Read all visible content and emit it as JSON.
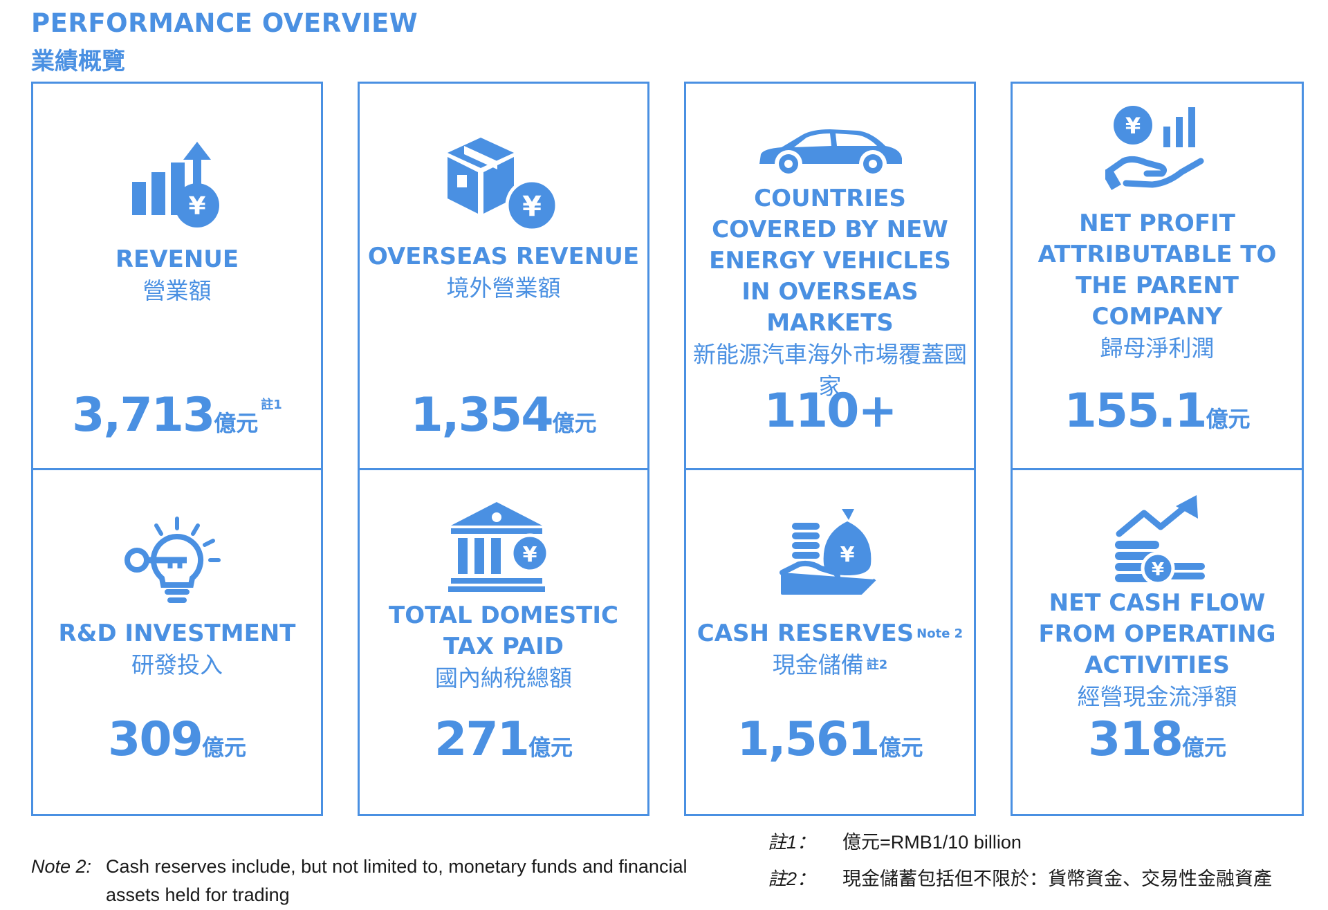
{
  "header": {
    "title_en": "PERFORMANCE OVERVIEW",
    "title_zh": "業績概覽"
  },
  "colors": {
    "accent": "#4a90e2",
    "text": "#1a1a1a"
  },
  "cards": [
    {
      "icon": "revenue-chart-yuan-icon",
      "title_en": "REVENUE",
      "title_zh": "營業額",
      "value": "3,713",
      "unit": "億元",
      "note": "註1"
    },
    {
      "icon": "box-yuan-icon",
      "title_en": "OVERSEAS REVENUE",
      "title_zh": "境外營業額",
      "value": "1,354",
      "unit": "億元"
    },
    {
      "icon": "car-icon",
      "title_en": "COUNTRIES COVERED BY NEW ENERGY VEHICLES IN OVERSEAS MARKETS",
      "title_zh": "新能源汽車海外市場覆蓋國家",
      "value": "110+"
    },
    {
      "icon": "hand-yuan-chart-icon",
      "title_en": "NET PROFIT ATTRIBUTABLE TO THE PARENT COMPANY",
      "title_zh": "歸母淨利潤",
      "value": "155.1",
      "unit": "億元"
    },
    {
      "icon": "lightbulb-key-icon",
      "title_en": "R&D INVESTMENT",
      "title_zh": "研發投入",
      "value": "309",
      "unit": "億元"
    },
    {
      "icon": "bank-yuan-icon",
      "title_en": "TOTAL DOMESTIC TAX PAID",
      "title_zh": "國內納稅總額",
      "value": "271",
      "unit": "億元"
    },
    {
      "icon": "money-bag-hand-icon",
      "title_en": "CASH RESERVES",
      "title_en_note": "Note 2",
      "title_zh": "現金儲備",
      "title_zh_note": "註2",
      "value": "1,561",
      "unit": "億元"
    },
    {
      "icon": "coins-arrow-up-icon",
      "title_en": "NET CASH FLOW FROM OPERATING ACTIVITIES",
      "title_zh": "經營現金流淨額",
      "value": "318",
      "unit": "億元"
    }
  ],
  "notes": {
    "note2_label": "Note 2:",
    "note2_text_line1": "Cash reserves include, but not limited to, monetary funds and financial",
    "note2_text_line2": "assets held for trading",
    "zh_note1_label": "註1：",
    "zh_note1_text": "億元=RMB1/10 billion",
    "zh_note2_label": "註2：",
    "zh_note2_text": "現金儲蓄包括但不限於：貨幣資金、交易性金融資產"
  }
}
